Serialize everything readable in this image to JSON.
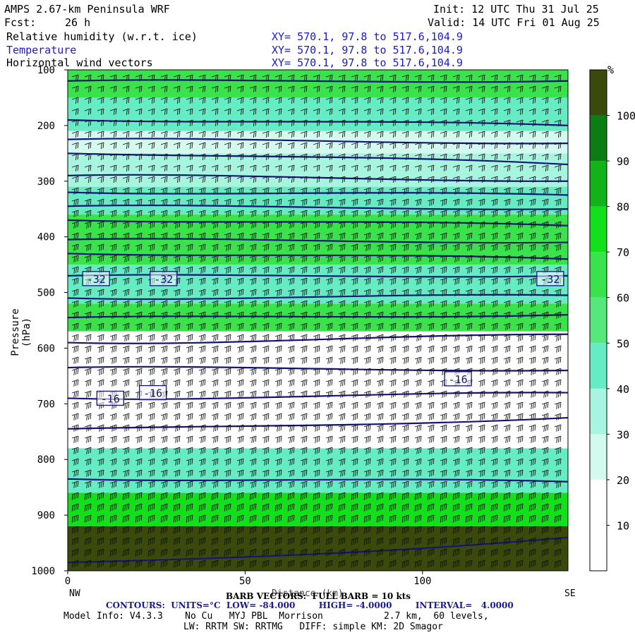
{
  "header": {
    "model": "AMPS 2.67-km Peninsula WRF",
    "init": "Init: 12 UTC Thu 31 Jul 25",
    "fcst_label": "Fcst:",
    "fcst_value": "26 h",
    "valid": "Valid: 14 UTC Fri 01 Aug 25"
  },
  "fields": [
    {
      "name": "Relative humidity (w.r.t. ice)",
      "xy": "XY= 570.1, 97.8 to 517.6,104.9",
      "color": "#000000"
    },
    {
      "name": "Temperature",
      "xy": "XY= 570.1, 97.8 to 517.6,104.9",
      "color": "#1a1acc"
    },
    {
      "name": "Horizontal wind vectors",
      "xy": "XY= 570.1, 97.8 to 517.6,104.9",
      "color": "#000000"
    }
  ],
  "colorbar": {
    "unit": "%",
    "ticks": [
      "10",
      "20",
      "30",
      "40",
      "50",
      "60",
      "70",
      "80",
      "90",
      "100"
    ],
    "colors": [
      "#ffffff",
      "#ffffff",
      "#d4f9ee",
      "#a8f5df",
      "#66ecc4",
      "#56e87a",
      "#3ae34c",
      "#12e01a",
      "#12b31a",
      "#0c7d12",
      "#3a4a0a"
    ]
  },
  "footer": {
    "nw": "NW",
    "se": "SE",
    "xlabel": "Distance (km)",
    "barb_note": "BARB VECTORS:  FULL BARB = 10 kts",
    "contours": "CONTOURS:  UNITS=°C  LOW= -84.000        HIGH= -4.0000        INTERVAL=   4.0000",
    "model_info": "Model Info: V4.3.3    No Cu   MYJ PBL  Morrison           2.7 km,  60 levels,",
    "model_info2": "LW: RRTM SW: RRTMG   DIFF: simple KM: 2D Smagor"
  },
  "chart_data": {
    "type": "heatmap",
    "title": "Relative humidity (w.r.t. ice); Temperature; Horizontal wind vectors",
    "xlabel": "Distance (km)",
    "ylabel": "Pressure (hPa)",
    "xlim": [
      0,
      141
    ],
    "ylim": [
      1000,
      100
    ],
    "x_ticks": [
      0,
      50,
      100
    ],
    "y_ticks": [
      100,
      200,
      300,
      400,
      500,
      600,
      700,
      800,
      900,
      1000
    ],
    "rh_levels_percent": [
      10,
      20,
      30,
      40,
      50,
      60,
      70,
      80,
      90,
      100
    ],
    "rh_bands": [
      {
        "p_top": 100,
        "p_bot": 150,
        "rh": 60
      },
      {
        "p_top": 150,
        "p_bot": 210,
        "rh": 40
      },
      {
        "p_top": 210,
        "p_bot": 250,
        "rh": 20
      },
      {
        "p_top": 250,
        "p_bot": 310,
        "rh": 30
      },
      {
        "p_top": 310,
        "p_bot": 360,
        "rh": 40
      },
      {
        "p_top": 360,
        "p_bot": 450,
        "rh": 62
      },
      {
        "p_top": 450,
        "p_bot": 520,
        "rh": 40
      },
      {
        "p_top": 520,
        "p_bot": 570,
        "rh": 60
      },
      {
        "p_top": 570,
        "p_bot": 780,
        "rh": 15
      },
      {
        "p_top": 780,
        "p_bot": 860,
        "rh": 45
      },
      {
        "p_top": 860,
        "p_bot": 920,
        "rh": 70
      },
      {
        "p_top": 920,
        "p_bot": 1000,
        "rh": 100
      }
    ],
    "temperature_contour_labels": [
      {
        "x": 8,
        "p": 475,
        "value": "-32"
      },
      {
        "x": 27,
        "p": 475,
        "value": "-32"
      },
      {
        "x": 136,
        "p": 475,
        "value": "-32"
      },
      {
        "x": 12,
        "p": 690,
        "value": "-16"
      },
      {
        "x": 24,
        "p": 680,
        "value": "-16"
      },
      {
        "x": 110,
        "p": 655,
        "value": "-16"
      }
    ],
    "temperature_contours_p_at_left": [
      120,
      190,
      225,
      250,
      290,
      320,
      345,
      370,
      405,
      430,
      470,
      510,
      545,
      590,
      635,
      690,
      745,
      835,
      985
    ],
    "temperature_contours_p_at_right": [
      120,
      200,
      232,
      270,
      300,
      325,
      350,
      380,
      410,
      440,
      470,
      505,
      540,
      575,
      640,
      680,
      725,
      840,
      940
    ],
    "contour_units": "°C",
    "contour_low": -84.0,
    "contour_high": -4.0,
    "contour_interval": 4.0,
    "barb_full_kts": 10
  }
}
